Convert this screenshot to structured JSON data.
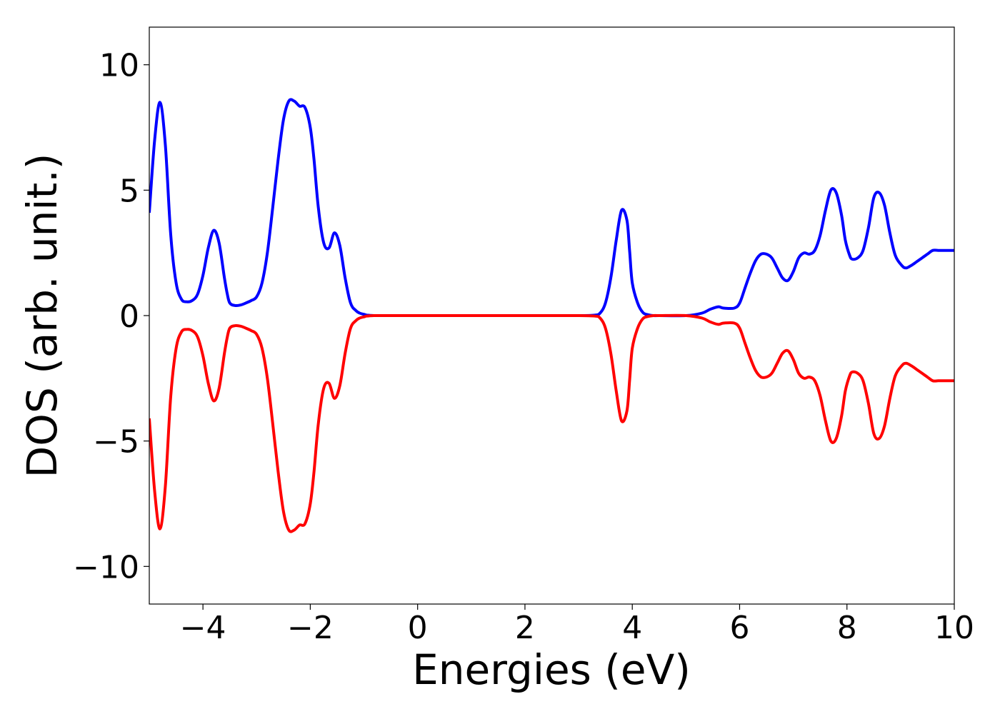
{
  "chart_data": {
    "type": "line",
    "title": "",
    "xlabel": "Energies (eV)",
    "ylabel": "DOS (arb. unit.)",
    "xlim": [
      -5,
      10
    ],
    "ylim": [
      -11.5,
      11.5
    ],
    "grid": false,
    "legend": "none",
    "x_ticks": [
      -4,
      -2,
      0,
      2,
      4,
      6,
      8,
      10
    ],
    "x_tick_labels": [
      "−4",
      "−2",
      "0",
      "2",
      "4",
      "6",
      "8",
      "10"
    ],
    "y_ticks": [
      10,
      5,
      0,
      -5,
      -10
    ],
    "y_tick_labels": [
      "10",
      "5",
      "0",
      "−5",
      "−10"
    ],
    "series": [
      {
        "color": "#0000ff",
        "x": [
          -5.0,
          -4.9,
          -4.8,
          -4.7,
          -4.6,
          -4.5,
          -4.4,
          -4.3,
          -4.2,
          -4.1,
          -4.0,
          -3.9,
          -3.8,
          -3.7,
          -3.6,
          -3.55,
          -3.5,
          -3.4,
          -3.3,
          -3.2,
          -3.1,
          -3.0,
          -2.9,
          -2.8,
          -2.7,
          -2.6,
          -2.5,
          -2.4,
          -2.3,
          -2.2,
          -2.1,
          -2.0,
          -1.93,
          -1.85,
          -1.75,
          -1.65,
          -1.55,
          -1.45,
          -1.35,
          -1.25,
          -1.15,
          -1.08,
          -1.0,
          -0.95,
          -0.9,
          -0.8,
          -0.7,
          -0.6,
          -0.5,
          -0.3,
          0.0,
          1.0,
          2.0,
          3.0,
          3.3,
          3.4,
          3.5,
          3.6,
          3.7,
          3.8,
          3.9,
          3.95,
          4.0,
          4.1,
          4.2,
          4.3,
          4.4,
          4.5,
          5.0,
          5.3,
          5.45,
          5.6,
          5.7,
          5.9,
          6.0,
          6.1,
          6.2,
          6.3,
          6.4,
          6.5,
          6.6,
          6.7,
          6.8,
          6.9,
          7.0,
          7.1,
          7.2,
          7.3,
          7.4,
          7.5,
          7.6,
          7.7,
          7.8,
          7.9,
          7.97,
          8.05,
          8.1,
          8.2,
          8.3,
          8.4,
          8.5,
          8.6,
          8.7,
          8.8,
          8.9,
          9.02,
          9.1,
          9.2,
          9.3,
          9.4,
          9.5,
          9.6,
          9.7,
          9.8,
          9.9,
          10.0
        ],
        "y": [
          4.1,
          7.0,
          8.5,
          6.8,
          3.2,
          1.3,
          0.65,
          0.55,
          0.6,
          0.85,
          1.6,
          2.7,
          3.4,
          2.9,
          1.5,
          0.9,
          0.5,
          0.4,
          0.42,
          0.5,
          0.6,
          0.75,
          1.3,
          2.5,
          4.3,
          6.2,
          7.8,
          8.55,
          8.55,
          8.35,
          8.3,
          7.5,
          6.2,
          4.3,
          2.9,
          2.7,
          3.3,
          2.8,
          1.5,
          0.5,
          0.2,
          0.1,
          0.05,
          0.02,
          0.01,
          0.0,
          0.0,
          0.0,
          0.0,
          0.0,
          0.0,
          0.0,
          0.0,
          0.0,
          0.02,
          0.1,
          0.5,
          1.5,
          3.0,
          4.2,
          3.8,
          2.6,
          1.3,
          0.5,
          0.12,
          0.03,
          0.0,
          0.0,
          0.0,
          0.1,
          0.25,
          0.35,
          0.3,
          0.3,
          0.5,
          1.1,
          1.7,
          2.2,
          2.45,
          2.45,
          2.3,
          1.9,
          1.5,
          1.4,
          1.75,
          2.3,
          2.5,
          2.45,
          2.6,
          3.2,
          4.2,
          5.0,
          4.9,
          4.0,
          3.0,
          2.4,
          2.25,
          2.3,
          2.6,
          3.5,
          4.7,
          4.9,
          4.4,
          3.3,
          2.4,
          2.0,
          1.9,
          2.0,
          2.15,
          2.3,
          2.45,
          2.6,
          2.6,
          2.6,
          2.6,
          2.6
        ]
      },
      {
        "color": "#ff0000",
        "x": [
          -5.0,
          -4.9,
          -4.8,
          -4.7,
          -4.6,
          -4.5,
          -4.4,
          -4.3,
          -4.2,
          -4.1,
          -4.0,
          -3.9,
          -3.8,
          -3.7,
          -3.6,
          -3.55,
          -3.5,
          -3.4,
          -3.3,
          -3.2,
          -3.1,
          -3.0,
          -2.9,
          -2.8,
          -2.7,
          -2.6,
          -2.5,
          -2.4,
          -2.3,
          -2.2,
          -2.1,
          -2.0,
          -1.93,
          -1.85,
          -1.75,
          -1.65,
          -1.55,
          -1.45,
          -1.35,
          -1.25,
          -1.15,
          -1.08,
          -1.0,
          -0.95,
          -0.9,
          -0.8,
          -0.7,
          -0.6,
          -0.5,
          -0.3,
          0.0,
          1.0,
          2.0,
          3.0,
          3.3,
          3.4,
          3.5,
          3.6,
          3.7,
          3.8,
          3.9,
          3.95,
          4.0,
          4.1,
          4.2,
          4.3,
          4.4,
          4.5,
          5.0,
          5.3,
          5.45,
          5.6,
          5.7,
          5.9,
          6.0,
          6.1,
          6.2,
          6.3,
          6.4,
          6.5,
          6.6,
          6.7,
          6.8,
          6.9,
          7.0,
          7.1,
          7.2,
          7.3,
          7.4,
          7.5,
          7.6,
          7.7,
          7.8,
          7.9,
          7.97,
          8.05,
          8.1,
          8.2,
          8.3,
          8.4,
          8.5,
          8.6,
          8.7,
          8.8,
          8.9,
          9.02,
          9.1,
          9.2,
          9.3,
          9.4,
          9.5,
          9.6,
          9.7,
          9.8,
          9.9,
          10.0
        ],
        "y": [
          -4.1,
          -7.0,
          -8.5,
          -6.8,
          -3.2,
          -1.3,
          -0.65,
          -0.55,
          -0.6,
          -0.85,
          -1.6,
          -2.7,
          -3.4,
          -2.9,
          -1.5,
          -0.9,
          -0.5,
          -0.4,
          -0.42,
          -0.5,
          -0.6,
          -0.75,
          -1.3,
          -2.5,
          -4.3,
          -6.2,
          -7.8,
          -8.55,
          -8.55,
          -8.35,
          -8.3,
          -7.5,
          -6.2,
          -4.3,
          -2.9,
          -2.7,
          -3.3,
          -2.8,
          -1.5,
          -0.5,
          -0.2,
          -0.1,
          -0.05,
          -0.02,
          -0.01,
          0.0,
          0.0,
          0.0,
          0.0,
          0.0,
          0.0,
          0.0,
          0.0,
          0.0,
          -0.02,
          -0.1,
          -0.5,
          -1.5,
          -3.0,
          -4.2,
          -3.8,
          -2.6,
          -1.3,
          -0.5,
          -0.12,
          -0.03,
          0.0,
          0.0,
          0.0,
          -0.1,
          -0.25,
          -0.35,
          -0.3,
          -0.3,
          -0.5,
          -1.1,
          -1.7,
          -2.2,
          -2.45,
          -2.45,
          -2.3,
          -1.9,
          -1.5,
          -1.4,
          -1.75,
          -2.3,
          -2.5,
          -2.45,
          -2.6,
          -3.2,
          -4.2,
          -5.0,
          -4.9,
          -4.0,
          -3.0,
          -2.4,
          -2.25,
          -2.3,
          -2.6,
          -3.5,
          -4.7,
          -4.9,
          -4.4,
          -3.3,
          -2.4,
          -2.0,
          -1.9,
          -2.0,
          -2.15,
          -2.3,
          -2.45,
          -2.6,
          -2.6,
          -2.6,
          -2.6,
          -2.6
        ]
      }
    ]
  }
}
